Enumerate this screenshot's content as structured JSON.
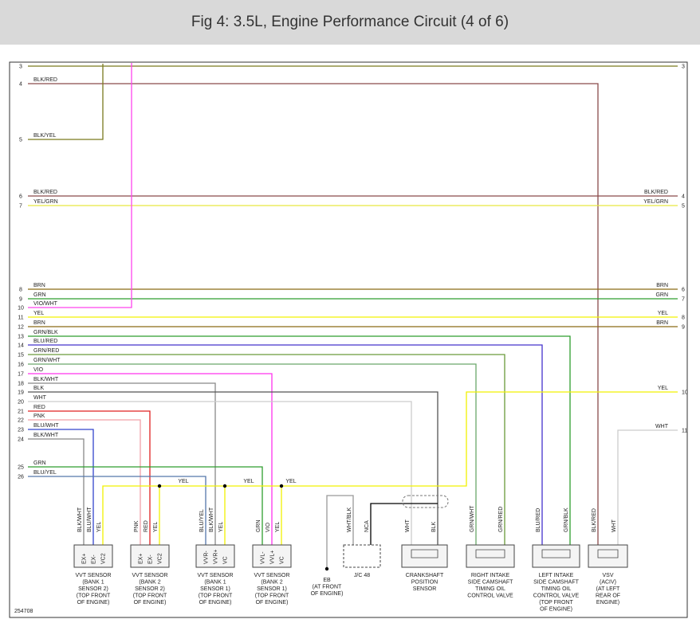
{
  "header": {
    "title": "Fig 4: 3.5L, Engine Performance Circuit (4 of 6)"
  },
  "left_wires": [
    {
      "pin": "3",
      "color": "#7a7a1e"
    },
    {
      "pin": "4",
      "label": "BLK/RED",
      "color": "#8a4b4b"
    },
    {
      "pin": "5",
      "label": "BLK/YEL",
      "color": "#7a7a1e"
    },
    {
      "pin": "6",
      "label": "BLK/RED",
      "color": "#8a4b4b"
    },
    {
      "pin": "7",
      "label": "YEL/GRN",
      "color": "#e6e640"
    },
    {
      "pin": "8",
      "label": "BRN",
      "color": "#8b6a14"
    },
    {
      "pin": "9",
      "label": "GRN",
      "color": "#2e9e2e"
    },
    {
      "pin": "10",
      "label": "VIO/WHT",
      "color": "#ff44ee"
    },
    {
      "pin": "11",
      "label": "YEL",
      "color": "#f2f200"
    },
    {
      "pin": "12",
      "label": "BRN",
      "color": "#8b6a14"
    },
    {
      "pin": "13",
      "label": "GRN/BLK",
      "color": "#2e9e2e"
    },
    {
      "pin": "14",
      "label": "BLU/RED",
      "color": "#4433cc"
    },
    {
      "pin": "15",
      "label": "GRN/RED",
      "color": "#6a9a3a"
    },
    {
      "pin": "16",
      "label": "GRN/WHT",
      "color": "#6aa86a"
    },
    {
      "pin": "17",
      "label": "VIO",
      "color": "#ff33ee"
    },
    {
      "pin": "18",
      "label": "BLK/WHT",
      "color": "#888888"
    },
    {
      "pin": "19",
      "label": "BLK",
      "color": "#555555"
    },
    {
      "pin": "20",
      "label": "WHT",
      "color": "#cccccc"
    },
    {
      "pin": "21",
      "label": "RED",
      "color": "#e02020"
    },
    {
      "pin": "22",
      "label": "PNK",
      "color": "#f2a0a8"
    },
    {
      "pin": "23",
      "label": "BLU/WHT",
      "color": "#3344cc"
    },
    {
      "pin": "24",
      "label": "BLK/WHT",
      "color": "#888888"
    },
    {
      "pin": "25",
      "label": "GRN",
      "color": "#2e9e2e"
    },
    {
      "pin": "26",
      "label": "BLU/YEL",
      "color": "#5577aa"
    }
  ],
  "right_wires": [
    {
      "pin": "3"
    },
    {
      "pin": "4",
      "label": "BLK/RED"
    },
    {
      "pin": "5",
      "label": "YEL/GRN"
    },
    {
      "pin": "6",
      "label": "BRN"
    },
    {
      "pin": "7",
      "label": "GRN"
    },
    {
      "pin": "8",
      "label": "YEL"
    },
    {
      "pin": "9",
      "label": "BRN"
    },
    {
      "pin": "10",
      "label": "YEL",
      "color": "#f2f200"
    },
    {
      "pin": "11",
      "label": "WHT",
      "color": "#cccccc"
    }
  ],
  "bus_labels": [
    "YEL",
    "YEL",
    "YEL"
  ],
  "components": [
    {
      "wires": [
        "BLK/WHT",
        "BLU/WHT",
        "YEL"
      ],
      "pins": [
        "EX+",
        "EX-",
        "VC2"
      ],
      "name": [
        "VVT SENSOR",
        "(BANK 1",
        "SENSOR 2)",
        "(TOP FRONT",
        "OF ENGINE)"
      ]
    },
    {
      "wires": [
        "PNK",
        "RED",
        "YEL"
      ],
      "pins": [
        "EX+",
        "EX-",
        "VC2"
      ],
      "name": [
        "VVT SENSOR",
        "(BANK 2",
        "SENSOR 2)",
        "(TOP FRONT",
        "OF ENGINE)"
      ]
    },
    {
      "wires": [
        "BLU/YEL",
        "BLK/WHT",
        "YEL"
      ],
      "pins": [
        "VVR-",
        "VVR+",
        "VC"
      ],
      "name": [
        "VVT SENSOR",
        "(BANK 1",
        "SENSOR 1)",
        "(TOP FRONT",
        "OF ENGINE)"
      ]
    },
    {
      "wires": [
        "GRN",
        "VIO",
        "YEL"
      ],
      "pins": [
        "VVL-",
        "VVL+",
        "VC"
      ],
      "name": [
        "VVT SENSOR",
        "(BANK 2",
        "SENSOR 1)",
        "(TOP FRONT",
        "OF ENGINE)"
      ]
    },
    {
      "wires": [
        "WHT/BLK",
        "NCA"
      ],
      "name": [
        "J/C 48"
      ]
    },
    {
      "wires": [
        "WHT",
        "BLK"
      ],
      "name": [
        "CRANKSHAFT",
        "POSITION",
        "SENSOR"
      ]
    },
    {
      "wires": [
        "GRN/WHT",
        "GRN/RED"
      ],
      "name": [
        "RIGHT INTAKE",
        "SIDE CAMSHAFT",
        "TIMING OIL",
        "CONTROL VALVE"
      ]
    },
    {
      "wires": [
        "BLU/RED",
        "GRN/BLK"
      ],
      "name": [
        "LEFT INTAKE",
        "SIDE CAMSHAFT",
        "TIMING OIL",
        "CONTROL VALVE",
        "(TOP FRONT",
        "OF ENGINE)"
      ]
    },
    {
      "wires": [
        "BLK/RED",
        "WHT"
      ],
      "name": [
        "VSV",
        "(ACIV)",
        "(AT LEFT",
        "REAR OF",
        "ENGINE)"
      ]
    }
  ],
  "ground": {
    "name": [
      "EB",
      "(AT FRONT",
      "OF ENGINE)"
    ]
  },
  "figure_id": "254708"
}
